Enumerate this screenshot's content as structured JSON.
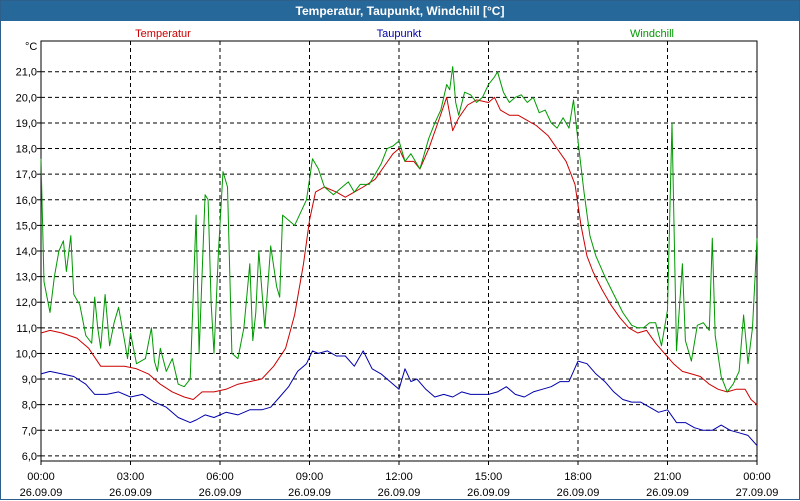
{
  "window": {
    "title": "Temperatur, Taupunkt, Windchill [°C]"
  },
  "chart_data": {
    "type": "line",
    "title": "Temperatur, Taupunkt, Windchill [°C]",
    "ylabel": "°C",
    "xlabel": "",
    "xlim": [
      0,
      24
    ],
    "ylim": [
      5.8,
      22.2
    ],
    "grid": true,
    "legend_position": "top",
    "y_ticks": [
      "6,0",
      "7,0",
      "8,0",
      "9,0",
      "10,0",
      "11,0",
      "12,0",
      "13,0",
      "14,0",
      "15,0",
      "16,0",
      "17,0",
      "18,0",
      "19,0",
      "20,0",
      "21,0"
    ],
    "x_ticks": [
      {
        "time": "00:00",
        "date": "26.09.09"
      },
      {
        "time": "03:00",
        "date": "26.09.09"
      },
      {
        "time": "06:00",
        "date": "26.09.09"
      },
      {
        "time": "09:00",
        "date": "26.09.09"
      },
      {
        "time": "12:00",
        "date": "26.09.09"
      },
      {
        "time": "15:00",
        "date": "26.09.09"
      },
      {
        "time": "18:00",
        "date": "26.09.09"
      },
      {
        "time": "21:00",
        "date": "26.09.09"
      },
      {
        "time": "00:00",
        "date": "27.09.09"
      }
    ],
    "series": [
      {
        "name": "Temperatur",
        "color": "#cc0000",
        "points": [
          [
            0,
            10.8
          ],
          [
            0.3,
            10.9
          ],
          [
            0.7,
            10.8
          ],
          [
            1.2,
            10.6
          ],
          [
            1.6,
            10.2
          ],
          [
            2.0,
            9.5
          ],
          [
            2.4,
            9.5
          ],
          [
            2.8,
            9.5
          ],
          [
            3.2,
            9.4
          ],
          [
            3.6,
            9.2
          ],
          [
            4.0,
            8.8
          ],
          [
            4.4,
            8.5
          ],
          [
            4.8,
            8.3
          ],
          [
            5.1,
            8.2
          ],
          [
            5.4,
            8.5
          ],
          [
            5.8,
            8.5
          ],
          [
            6.2,
            8.6
          ],
          [
            6.6,
            8.8
          ],
          [
            7.0,
            8.9
          ],
          [
            7.4,
            9.0
          ],
          [
            7.8,
            9.5
          ],
          [
            8.2,
            10.2
          ],
          [
            8.5,
            11.5
          ],
          [
            8.8,
            13.5
          ],
          [
            9.0,
            15.2
          ],
          [
            9.2,
            16.3
          ],
          [
            9.5,
            16.5
          ],
          [
            9.9,
            16.3
          ],
          [
            10.2,
            16.1
          ],
          [
            10.5,
            16.3
          ],
          [
            10.8,
            16.5
          ],
          [
            11.2,
            16.8
          ],
          [
            11.5,
            17.3
          ],
          [
            11.8,
            17.8
          ],
          [
            12.0,
            18.0
          ],
          [
            12.2,
            17.5
          ],
          [
            12.5,
            17.5
          ],
          [
            12.7,
            17.2
          ],
          [
            13.0,
            18.0
          ],
          [
            13.3,
            19.0
          ],
          [
            13.6,
            20.0
          ],
          [
            13.8,
            18.7
          ],
          [
            14.0,
            19.2
          ],
          [
            14.3,
            19.7
          ],
          [
            14.6,
            19.9
          ],
          [
            15.0,
            19.8
          ],
          [
            15.2,
            20.0
          ],
          [
            15.4,
            19.5
          ],
          [
            15.7,
            19.3
          ],
          [
            16.0,
            19.3
          ],
          [
            16.3,
            19.1
          ],
          [
            16.6,
            18.9
          ],
          [
            17.0,
            18.5
          ],
          [
            17.3,
            18.0
          ],
          [
            17.6,
            17.5
          ],
          [
            17.9,
            16.6
          ],
          [
            18.1,
            15.0
          ],
          [
            18.3,
            13.8
          ],
          [
            18.5,
            13.2
          ],
          [
            18.8,
            12.5
          ],
          [
            19.1,
            11.9
          ],
          [
            19.4,
            11.4
          ],
          [
            19.7,
            11.0
          ],
          [
            20.0,
            10.8
          ],
          [
            20.3,
            10.9
          ],
          [
            20.6,
            10.4
          ],
          [
            20.9,
            10.0
          ],
          [
            21.2,
            9.6
          ],
          [
            21.5,
            9.3
          ],
          [
            21.8,
            9.2
          ],
          [
            22.1,
            9.1
          ],
          [
            22.4,
            8.8
          ],
          [
            22.7,
            8.6
          ],
          [
            23.0,
            8.5
          ],
          [
            23.3,
            8.6
          ],
          [
            23.6,
            8.6
          ],
          [
            23.8,
            8.2
          ],
          [
            24.0,
            8.0
          ]
        ]
      },
      {
        "name": "Taupunkt",
        "color": "#0000aa",
        "points": [
          [
            0,
            9.2
          ],
          [
            0.3,
            9.3
          ],
          [
            0.7,
            9.2
          ],
          [
            1.1,
            9.1
          ],
          [
            1.5,
            8.8
          ],
          [
            1.8,
            8.4
          ],
          [
            2.2,
            8.4
          ],
          [
            2.6,
            8.5
          ],
          [
            3.0,
            8.3
          ],
          [
            3.4,
            8.4
          ],
          [
            3.8,
            8.1
          ],
          [
            4.2,
            7.9
          ],
          [
            4.6,
            7.5
          ],
          [
            5.0,
            7.3
          ],
          [
            5.2,
            7.4
          ],
          [
            5.5,
            7.6
          ],
          [
            5.8,
            7.5
          ],
          [
            6.2,
            7.7
          ],
          [
            6.6,
            7.6
          ],
          [
            7.0,
            7.8
          ],
          [
            7.4,
            7.8
          ],
          [
            7.7,
            7.9
          ],
          [
            8.0,
            8.3
          ],
          [
            8.3,
            8.7
          ],
          [
            8.6,
            9.3
          ],
          [
            8.9,
            9.6
          ],
          [
            9.1,
            10.1
          ],
          [
            9.3,
            10.0
          ],
          [
            9.6,
            10.1
          ],
          [
            9.9,
            9.9
          ],
          [
            10.2,
            9.9
          ],
          [
            10.5,
            9.5
          ],
          [
            10.8,
            10.1
          ],
          [
            11.1,
            9.4
          ],
          [
            11.4,
            9.2
          ],
          [
            11.7,
            8.9
          ],
          [
            12.0,
            8.6
          ],
          [
            12.2,
            9.4
          ],
          [
            12.4,
            8.9
          ],
          [
            12.6,
            9.0
          ],
          [
            12.9,
            8.6
          ],
          [
            13.2,
            8.3
          ],
          [
            13.5,
            8.4
          ],
          [
            13.8,
            8.3
          ],
          [
            14.1,
            8.5
          ],
          [
            14.4,
            8.4
          ],
          [
            14.7,
            8.4
          ],
          [
            15.0,
            8.4
          ],
          [
            15.3,
            8.5
          ],
          [
            15.6,
            8.7
          ],
          [
            15.9,
            8.4
          ],
          [
            16.2,
            8.3
          ],
          [
            16.5,
            8.5
          ],
          [
            16.8,
            8.6
          ],
          [
            17.1,
            8.7
          ],
          [
            17.4,
            8.9
          ],
          [
            17.7,
            8.9
          ],
          [
            18.0,
            9.7
          ],
          [
            18.3,
            9.6
          ],
          [
            18.6,
            9.2
          ],
          [
            18.9,
            8.9
          ],
          [
            19.2,
            8.5
          ],
          [
            19.5,
            8.2
          ],
          [
            19.8,
            8.1
          ],
          [
            20.1,
            8.1
          ],
          [
            20.4,
            7.9
          ],
          [
            20.7,
            7.7
          ],
          [
            21.0,
            7.8
          ],
          [
            21.3,
            7.3
          ],
          [
            21.6,
            7.3
          ],
          [
            21.9,
            7.1
          ],
          [
            22.2,
            7.0
          ],
          [
            22.5,
            7.0
          ],
          [
            22.8,
            7.2
          ],
          [
            23.1,
            7.0
          ],
          [
            23.4,
            6.9
          ],
          [
            23.7,
            6.8
          ],
          [
            24.0,
            6.4
          ]
        ]
      },
      {
        "name": "Windchill",
        "color": "#009900",
        "points": [
          [
            0,
            17.6
          ],
          [
            0.1,
            12.8
          ],
          [
            0.3,
            11.6
          ],
          [
            0.45,
            13.0
          ],
          [
            0.6,
            14.0
          ],
          [
            0.75,
            14.4
          ],
          [
            0.85,
            13.2
          ],
          [
            1.0,
            14.6
          ],
          [
            1.1,
            12.3
          ],
          [
            1.3,
            11.9
          ],
          [
            1.5,
            10.7
          ],
          [
            1.7,
            10.4
          ],
          [
            1.8,
            12.2
          ],
          [
            1.9,
            11.0
          ],
          [
            2.0,
            10.2
          ],
          [
            2.15,
            12.3
          ],
          [
            2.3,
            10.3
          ],
          [
            2.45,
            11.2
          ],
          [
            2.6,
            11.8
          ],
          [
            2.8,
            10.5
          ],
          [
            2.9,
            9.8
          ],
          [
            3.0,
            10.8
          ],
          [
            3.2,
            9.6
          ],
          [
            3.5,
            9.8
          ],
          [
            3.7,
            11.0
          ],
          [
            3.8,
            9.7
          ],
          [
            3.9,
            9.3
          ],
          [
            4.0,
            10.2
          ],
          [
            4.2,
            9.3
          ],
          [
            4.4,
            9.8
          ],
          [
            4.6,
            8.8
          ],
          [
            4.8,
            8.7
          ],
          [
            5.0,
            9.0
          ],
          [
            5.2,
            15.4
          ],
          [
            5.3,
            10.0
          ],
          [
            5.5,
            16.2
          ],
          [
            5.6,
            16.0
          ],
          [
            5.7,
            12.0
          ],
          [
            5.8,
            10.0
          ],
          [
            5.95,
            14.0
          ],
          [
            6.1,
            17.1
          ],
          [
            6.25,
            16.5
          ],
          [
            6.4,
            10.0
          ],
          [
            6.6,
            9.8
          ],
          [
            6.8,
            11.0
          ],
          [
            7.0,
            13.5
          ],
          [
            7.1,
            10.5
          ],
          [
            7.2,
            11.6
          ],
          [
            7.3,
            14.0
          ],
          [
            7.5,
            11.0
          ],
          [
            7.7,
            14.2
          ],
          [
            7.9,
            12.6
          ],
          [
            8.0,
            12.2
          ],
          [
            8.1,
            15.4
          ],
          [
            8.3,
            15.2
          ],
          [
            8.5,
            15.0
          ],
          [
            8.7,
            15.5
          ],
          [
            8.9,
            16.0
          ],
          [
            9.1,
            17.6
          ],
          [
            9.3,
            17.2
          ],
          [
            9.5,
            16.5
          ],
          [
            9.8,
            16.2
          ],
          [
            10.0,
            16.4
          ],
          [
            10.3,
            16.7
          ],
          [
            10.5,
            16.3
          ],
          [
            10.7,
            16.6
          ],
          [
            11.0,
            16.6
          ],
          [
            11.2,
            17.0
          ],
          [
            11.4,
            17.4
          ],
          [
            11.6,
            18.0
          ],
          [
            11.8,
            18.1
          ],
          [
            12.0,
            18.3
          ],
          [
            12.2,
            17.5
          ],
          [
            12.4,
            17.8
          ],
          [
            12.7,
            17.2
          ],
          [
            13.0,
            18.4
          ],
          [
            13.2,
            19.0
          ],
          [
            13.4,
            19.5
          ],
          [
            13.6,
            20.5
          ],
          [
            13.7,
            20.3
          ],
          [
            13.8,
            21.2
          ],
          [
            13.9,
            19.8
          ],
          [
            14.0,
            19.3
          ],
          [
            14.2,
            20.2
          ],
          [
            14.4,
            20.1
          ],
          [
            14.6,
            19.8
          ],
          [
            14.8,
            20.0
          ],
          [
            15.0,
            20.5
          ],
          [
            15.2,
            20.8
          ],
          [
            15.3,
            21.0
          ],
          [
            15.5,
            20.2
          ],
          [
            15.7,
            19.8
          ],
          [
            15.9,
            20.0
          ],
          [
            16.1,
            20.1
          ],
          [
            16.3,
            19.8
          ],
          [
            16.5,
            20.0
          ],
          [
            16.7,
            19.4
          ],
          [
            16.9,
            19.5
          ],
          [
            17.1,
            19.0
          ],
          [
            17.3,
            18.8
          ],
          [
            17.5,
            19.2
          ],
          [
            17.7,
            18.8
          ],
          [
            17.85,
            19.9
          ],
          [
            18.0,
            18.3
          ],
          [
            18.2,
            16.3
          ],
          [
            18.4,
            14.6
          ],
          [
            18.6,
            13.8
          ],
          [
            18.9,
            13.0
          ],
          [
            19.2,
            12.3
          ],
          [
            19.5,
            11.6
          ],
          [
            19.8,
            11.1
          ],
          [
            20.0,
            11.0
          ],
          [
            20.2,
            11.0
          ],
          [
            20.4,
            11.2
          ],
          [
            20.6,
            11.2
          ],
          [
            20.8,
            10.3
          ],
          [
            21.0,
            11.7
          ],
          [
            21.15,
            19.0
          ],
          [
            21.3,
            10.1
          ],
          [
            21.5,
            13.5
          ],
          [
            21.6,
            10.5
          ],
          [
            21.8,
            9.7
          ],
          [
            22.0,
            11.1
          ],
          [
            22.2,
            11.2
          ],
          [
            22.4,
            10.9
          ],
          [
            22.5,
            14.5
          ],
          [
            22.6,
            10.7
          ],
          [
            22.8,
            9.1
          ],
          [
            23.0,
            8.5
          ],
          [
            23.2,
            8.8
          ],
          [
            23.4,
            9.3
          ],
          [
            23.55,
            11.5
          ],
          [
            23.7,
            9.6
          ],
          [
            23.85,
            11.0
          ],
          [
            24.0,
            14.5
          ]
        ]
      }
    ]
  }
}
